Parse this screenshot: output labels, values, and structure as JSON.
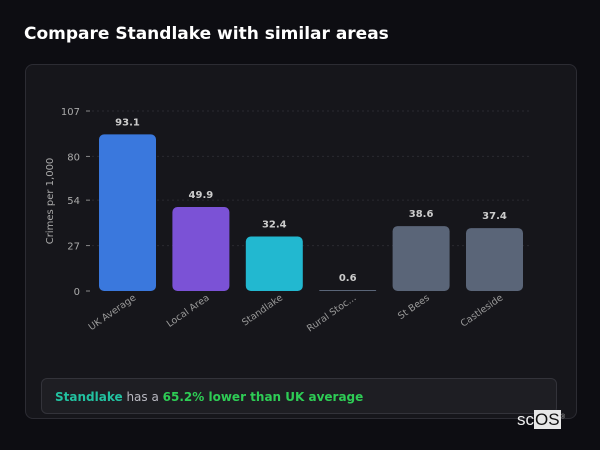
{
  "page_title": "Compare Standlake with similar areas",
  "chart_data": {
    "type": "bar",
    "categories": [
      "UK Average",
      "Local Area",
      "Standlake",
      "Rural Stoc...",
      "St Bees",
      "Castleside"
    ],
    "values": [
      93.1,
      49.9,
      32.4,
      0.6,
      38.6,
      37.4
    ],
    "data_labels": [
      "93.1",
      "49.9",
      "32.4",
      "0.6",
      "38.6",
      "37.4"
    ],
    "colors": [
      "#3a78dd",
      "#7b52d6",
      "#22b8d0",
      "#5a6578",
      "#5a6578",
      "#5a6578"
    ],
    "ylabel": "Crimes per 1,000",
    "xlabel": "",
    "yticks": [
      0,
      27,
      54,
      80,
      107
    ],
    "ylim": [
      0,
      107
    ],
    "grid": true
  },
  "summary": {
    "area": "Standlake",
    "middle": "has a",
    "comparison": "65.2% lower than UK average"
  },
  "logo": {
    "text_a": "sc",
    "text_b": "OS",
    "mark": "®"
  }
}
